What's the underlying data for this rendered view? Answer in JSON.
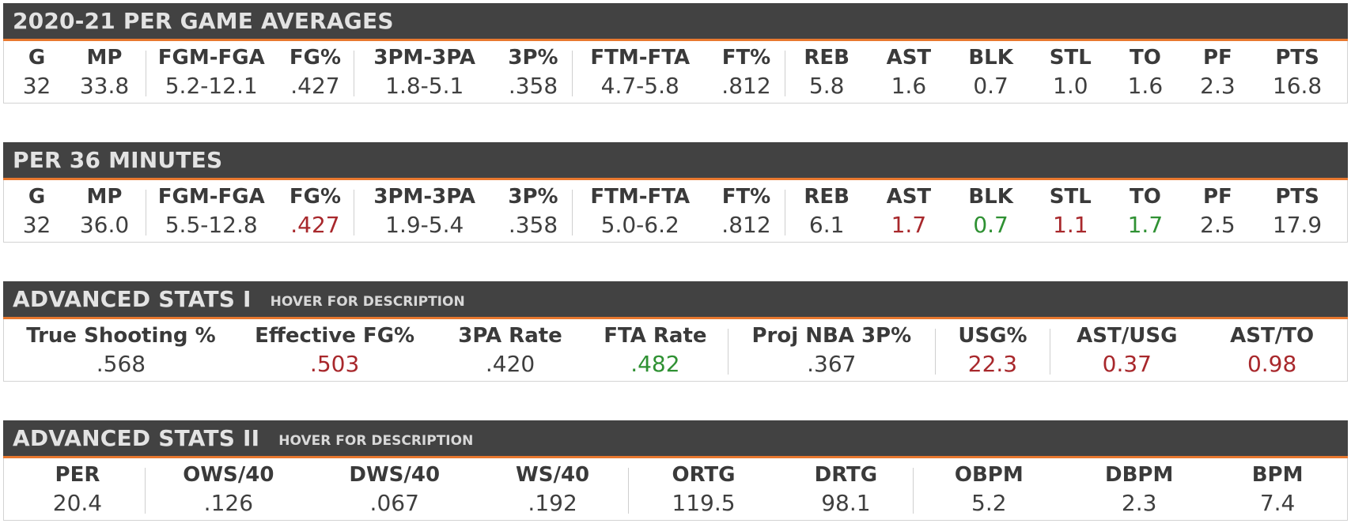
{
  "colors": {
    "header_bg": "#424242",
    "accent": "#e8782f",
    "negative": "#a8282c",
    "positive": "#2f9133"
  },
  "per_game": {
    "title": "2020-21 PER GAME AVERAGES",
    "stats": [
      {
        "label": "G",
        "value": "32"
      },
      {
        "label": "MP",
        "value": "33.8"
      },
      {
        "label": "FGM-FGA",
        "value": "5.2-12.1"
      },
      {
        "label": "FG%",
        "value": ".427"
      },
      {
        "label": "3PM-3PA",
        "value": "1.8-5.1"
      },
      {
        "label": "3P%",
        "value": ".358"
      },
      {
        "label": "FTM-FTA",
        "value": "4.7-5.8"
      },
      {
        "label": "FT%",
        "value": ".812"
      },
      {
        "label": "REB",
        "value": "5.8"
      },
      {
        "label": "AST",
        "value": "1.6"
      },
      {
        "label": "BLK",
        "value": "0.7"
      },
      {
        "label": "STL",
        "value": "1.0"
      },
      {
        "label": "TO",
        "value": "1.6"
      },
      {
        "label": "PF",
        "value": "2.3"
      },
      {
        "label": "PTS",
        "value": "16.8"
      }
    ]
  },
  "per_36": {
    "title": "PER 36 MINUTES",
    "stats": [
      {
        "label": "G",
        "value": "32"
      },
      {
        "label": "MP",
        "value": "36.0"
      },
      {
        "label": "FGM-FGA",
        "value": "5.5-12.8"
      },
      {
        "label": "FG%",
        "value": ".427",
        "color": "red"
      },
      {
        "label": "3PM-3PA",
        "value": "1.9-5.4"
      },
      {
        "label": "3P%",
        "value": ".358"
      },
      {
        "label": "FTM-FTA",
        "value": "5.0-6.2"
      },
      {
        "label": "FT%",
        "value": ".812"
      },
      {
        "label": "REB",
        "value": "6.1"
      },
      {
        "label": "AST",
        "value": "1.7",
        "color": "red"
      },
      {
        "label": "BLK",
        "value": "0.7",
        "color": "green"
      },
      {
        "label": "STL",
        "value": "1.1",
        "color": "red"
      },
      {
        "label": "TO",
        "value": "1.7",
        "color": "green"
      },
      {
        "label": "PF",
        "value": "2.5"
      },
      {
        "label": "PTS",
        "value": "17.9"
      }
    ]
  },
  "advanced_1": {
    "title": "ADVANCED STATS I",
    "hover_hint": "HOVER FOR DESCRIPTION",
    "stats": [
      {
        "label": "True Shooting %",
        "value": ".568"
      },
      {
        "label": "Effective FG%",
        "value": ".503",
        "color": "red"
      },
      {
        "label": "3PA Rate",
        "value": ".420"
      },
      {
        "label": "FTA Rate",
        "value": ".482",
        "color": "green"
      },
      {
        "label": "Proj NBA 3P%",
        "value": ".367"
      },
      {
        "label": "USG%",
        "value": "22.3",
        "color": "red"
      },
      {
        "label": "AST/USG",
        "value": "0.37",
        "color": "red"
      },
      {
        "label": "AST/TO",
        "value": "0.98",
        "color": "red"
      }
    ]
  },
  "advanced_2": {
    "title": "ADVANCED STATS II",
    "hover_hint": "HOVER FOR DESCRIPTION",
    "stats": [
      {
        "label": "PER",
        "value": "20.4"
      },
      {
        "label": "OWS/40",
        "value": ".126"
      },
      {
        "label": "DWS/40",
        "value": ".067"
      },
      {
        "label": "WS/40",
        "value": ".192"
      },
      {
        "label": "ORTG",
        "value": "119.5"
      },
      {
        "label": "DRTG",
        "value": "98.1"
      },
      {
        "label": "OBPM",
        "value": "5.2"
      },
      {
        "label": "DBPM",
        "value": "2.3"
      },
      {
        "label": "BPM",
        "value": "7.4"
      }
    ]
  }
}
